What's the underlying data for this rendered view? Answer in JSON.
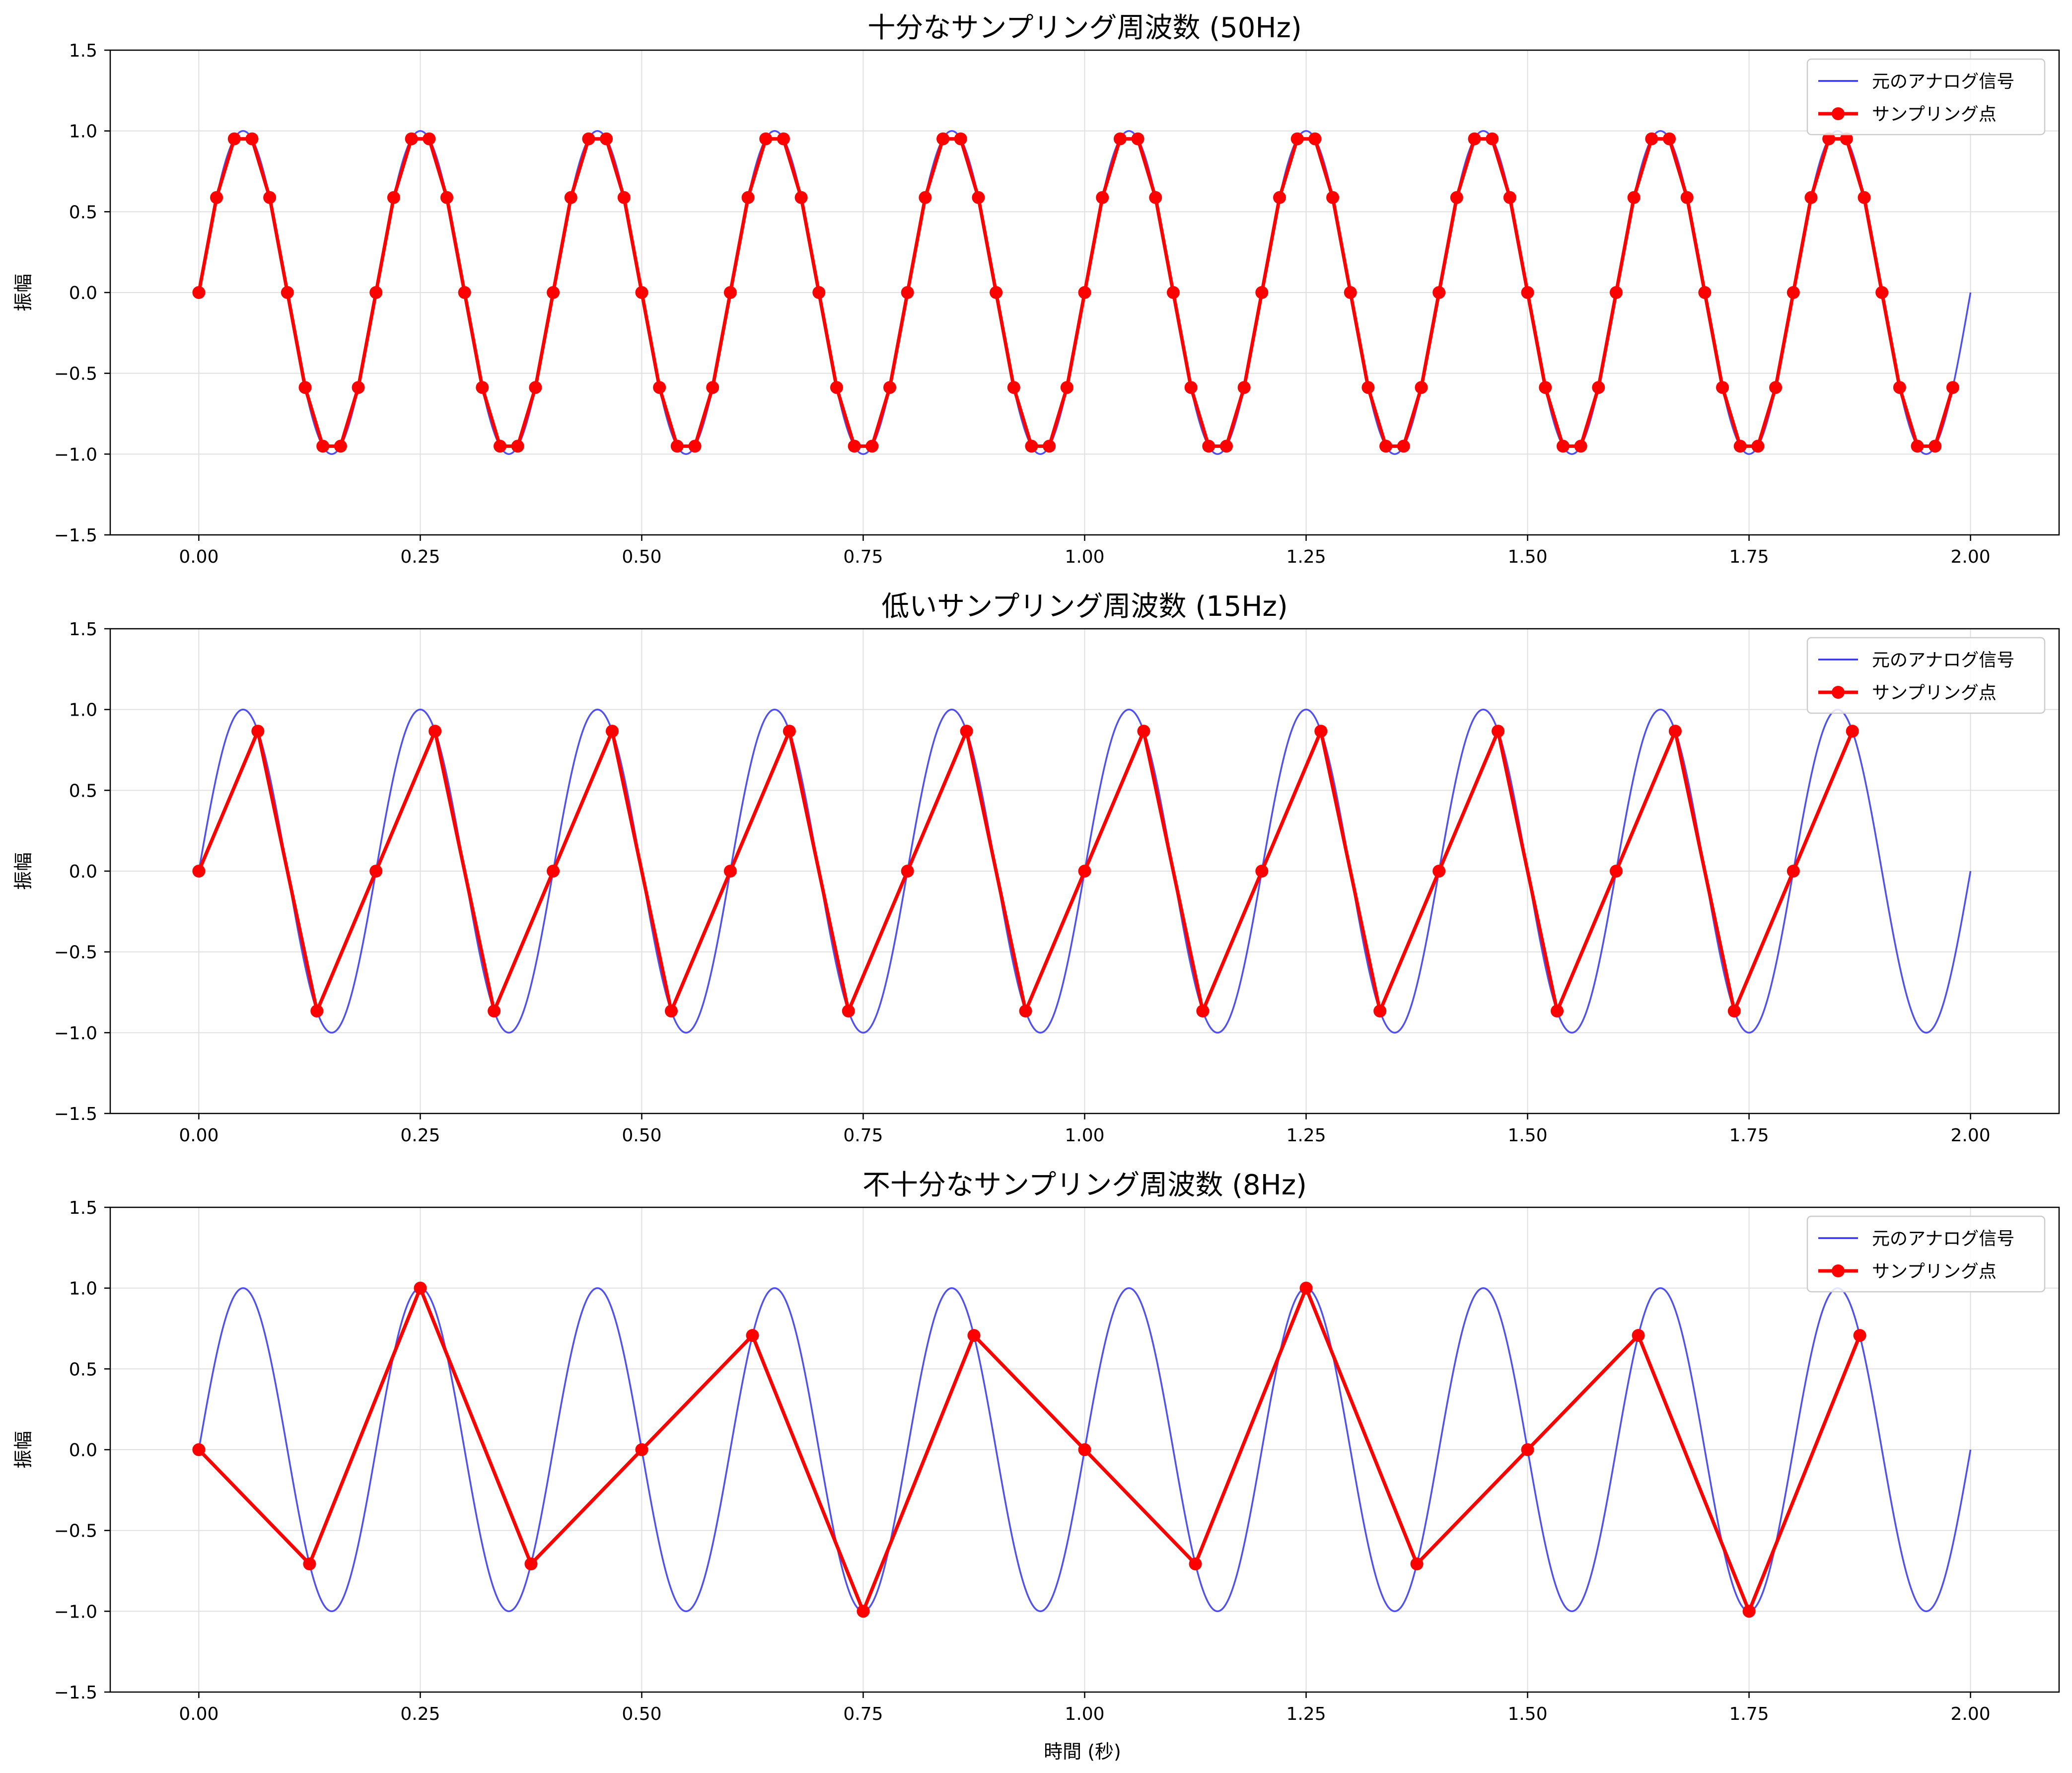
{
  "figure": {
    "xlabel": "時間 (秒)"
  },
  "colors": {
    "analog": "#3333ee",
    "samples": "#ff0000",
    "grid": "#e0e0e0",
    "axes": "#000000"
  },
  "chart_data": [
    {
      "type": "line",
      "title": "十分なサンプリング周波数 (50Hz)",
      "xlabel": "",
      "ylabel": "振幅",
      "xlim": [
        -0.1,
        2.1
      ],
      "ylim": [
        -1.5,
        1.5
      ],
      "xticks": [
        0.0,
        0.25,
        0.5,
        0.75,
        1.0,
        1.25,
        1.5,
        1.75,
        2.0
      ],
      "xtick_labels": [
        "0.00",
        "0.25",
        "0.50",
        "0.75",
        "1.00",
        "1.25",
        "1.50",
        "1.75",
        "2.00"
      ],
      "yticks": [
        -1.5,
        -1.0,
        -0.5,
        0.0,
        0.5,
        1.0,
        1.5
      ],
      "ytick_labels": [
        "−1.5",
        "−1.0",
        "−0.5",
        "0.0",
        "0.5",
        "1.0",
        "1.5"
      ],
      "grid": true,
      "legend_position": "top-right",
      "analog_signal": {
        "name": "元のアナログ信号",
        "frequency_hz": 5,
        "amplitude": 1,
        "t_start": 0,
        "t_end": 2
      },
      "samples": {
        "name": "サンプリング点",
        "sampling_rate_hz": 50,
        "t_start": 0,
        "t_end": 1.98
      }
    },
    {
      "type": "line",
      "title": "低いサンプリング周波数 (15Hz)",
      "xlabel": "",
      "ylabel": "振幅",
      "xlim": [
        -0.1,
        2.1
      ],
      "ylim": [
        -1.5,
        1.5
      ],
      "xticks": [
        0.0,
        0.25,
        0.5,
        0.75,
        1.0,
        1.25,
        1.5,
        1.75,
        2.0
      ],
      "xtick_labels": [
        "0.00",
        "0.25",
        "0.50",
        "0.75",
        "1.00",
        "1.25",
        "1.50",
        "1.75",
        "2.00"
      ],
      "yticks": [
        -1.5,
        -1.0,
        -0.5,
        0.0,
        0.5,
        1.0,
        1.5
      ],
      "ytick_labels": [
        "−1.5",
        "−1.0",
        "−0.5",
        "0.0",
        "0.5",
        "1.0",
        "1.5"
      ],
      "grid": true,
      "legend_position": "top-right",
      "analog_signal": {
        "name": "元のアナログ信号",
        "frequency_hz": 5,
        "amplitude": 1,
        "t_start": 0,
        "t_end": 2
      },
      "samples": {
        "name": "サンプリング点",
        "sampling_rate_hz": 15,
        "t_start": 0,
        "t_end": 1.9333
      }
    },
    {
      "type": "line",
      "title": "不十分なサンプリング周波数 (8Hz)",
      "xlabel": "時間 (秒)",
      "ylabel": "振幅",
      "xlim": [
        -0.1,
        2.1
      ],
      "ylim": [
        -1.5,
        1.5
      ],
      "xticks": [
        0.0,
        0.25,
        0.5,
        0.75,
        1.0,
        1.25,
        1.5,
        1.75,
        2.0
      ],
      "xtick_labels": [
        "0.00",
        "0.25",
        "0.50",
        "0.75",
        "1.00",
        "1.25",
        "1.50",
        "1.75",
        "2.00"
      ],
      "yticks": [
        -1.5,
        -1.0,
        -0.5,
        0.0,
        0.5,
        1.0,
        1.5
      ],
      "ytick_labels": [
        "−1.5",
        "−1.0",
        "−0.5",
        "0.0",
        "0.5",
        "1.0",
        "1.5"
      ],
      "grid": true,
      "legend_position": "top-right",
      "analog_signal": {
        "name": "元のアナログ信号",
        "frequency_hz": 5,
        "amplitude": 1,
        "t_start": 0,
        "t_end": 2
      },
      "samples": {
        "name": "サンプリング点",
        "sampling_rate_hz": 8,
        "t_start": 0,
        "t_end": 1.875
      }
    }
  ]
}
